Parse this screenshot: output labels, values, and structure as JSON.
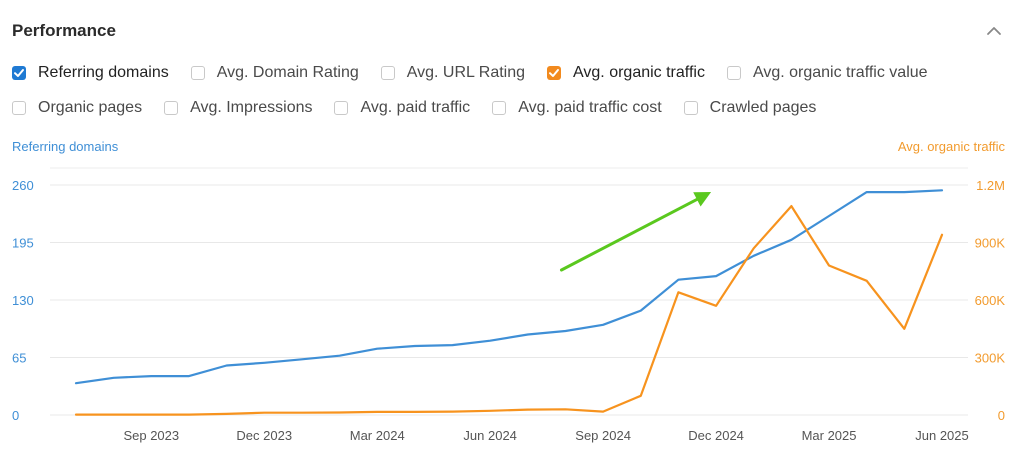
{
  "header": {
    "title": "Performance"
  },
  "options": [
    [
      {
        "label": "Referring domains",
        "checked": true,
        "color": "#1f7ad3"
      },
      {
        "label": "Avg. Domain Rating",
        "checked": false
      },
      {
        "label": "Avg. URL Rating",
        "checked": false
      },
      {
        "label": "Avg. organic traffic",
        "checked": true,
        "color": "#f28a1e"
      },
      {
        "label": "Avg. organic traffic value",
        "checked": false
      }
    ],
    [
      {
        "label": "Organic pages",
        "checked": false
      },
      {
        "label": "Avg. Impressions",
        "checked": false
      },
      {
        "label": "Avg. paid traffic",
        "checked": false
      },
      {
        "label": "Avg. paid traffic cost",
        "checked": false
      },
      {
        "label": "Crawled pages",
        "checked": false
      }
    ]
  ],
  "chart_data": {
    "type": "line",
    "left_axis_label": "Referring domains",
    "right_axis_label": "Avg. organic traffic",
    "left_ticks": [
      "0",
      "65",
      "130",
      "195",
      "260"
    ],
    "right_ticks": [
      "0",
      "300K",
      "600K",
      "900K",
      "1.2M"
    ],
    "x_tick_labels": [
      "Sep 2023",
      "Dec 2023",
      "Mar 2024",
      "Jun 2024",
      "Sep 2024",
      "Dec 2024",
      "Mar 2025",
      "Jun 2025"
    ],
    "left_ylim": [
      0,
      260
    ],
    "right_ylim": [
      0,
      1200000
    ],
    "x": [
      "Jul 2023",
      "Aug 2023",
      "Sep 2023",
      "Oct 2023",
      "Nov 2023",
      "Dec 2023",
      "Jan 2024",
      "Feb 2024",
      "Mar 2024",
      "Apr 2024",
      "May 2024",
      "Jun 2024",
      "Jul 2024",
      "Aug 2024",
      "Sep 2024",
      "Oct 2024",
      "Nov 2024",
      "Dec 2024",
      "Jan 2025",
      "Feb 2025",
      "Mar 2025",
      "Apr 2025",
      "May 2025",
      "Jun 2025"
    ],
    "series": [
      {
        "axis": "left",
        "color": "#3f8fd6",
        "values": [
          36,
          42,
          44,
          44,
          56,
          59,
          63,
          67,
          75,
          78,
          79,
          84,
          91,
          95,
          102,
          118,
          153,
          157,
          180,
          198,
          225,
          252,
          252,
          254
        ]
      },
      {
        "axis": "right",
        "color": "#f7931e",
        "values": [
          2000,
          2000,
          2000,
          2000,
          6000,
          12000,
          12000,
          13000,
          16000,
          16000,
          18000,
          22000,
          28000,
          30000,
          18000,
          100000,
          640000,
          570000,
          870000,
          1090000,
          780000,
          700000,
          450000,
          940000
        ]
      }
    ],
    "annotation": {
      "type": "arrow",
      "color": "#5ac81e",
      "from": "Aug 2024",
      "to": "Dec 2024"
    },
    "grid": true
  }
}
